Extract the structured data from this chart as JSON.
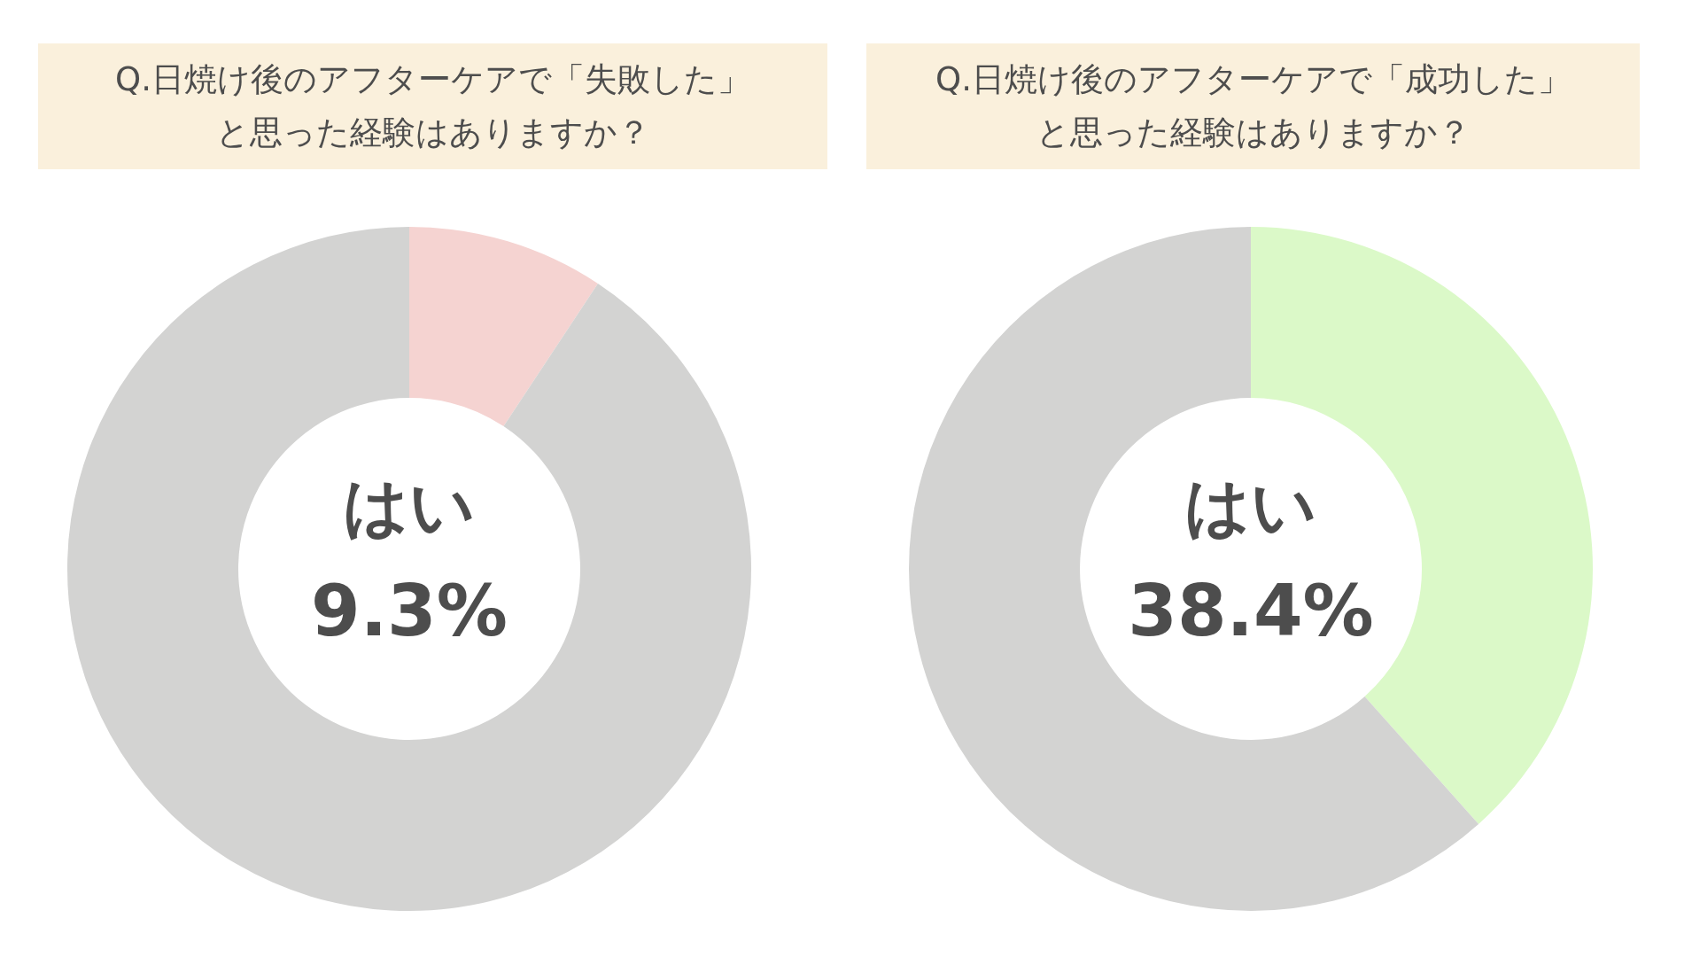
{
  "chart_data": [
    {
      "type": "donut",
      "title": "Q.日焼け後のアフターケアで「失敗した」と思った経験はありますか？",
      "categories": [
        "はい",
        null
      ],
      "values": [
        9.3,
        90.7
      ],
      "colors": [
        "#f5d3d1",
        "#d3d3d2"
      ],
      "value_labels": [
        "9.3%",
        null
      ]
    },
    {
      "type": "donut",
      "title": "Q.日焼け後のアフターケアで「成功した」と思った経験はありますか？",
      "categories": [
        "はい",
        null
      ],
      "values": [
        38.4,
        61.6
      ],
      "colors": [
        "#dbf9c8",
        "#d3d3d2"
      ],
      "value_labels": [
        "38.4%",
        null
      ]
    }
  ]
}
